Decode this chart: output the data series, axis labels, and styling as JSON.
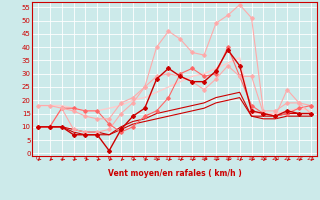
{
  "x": [
    0,
    1,
    2,
    3,
    4,
    5,
    6,
    7,
    8,
    9,
    10,
    11,
    12,
    13,
    14,
    15,
    16,
    17,
    18,
    19,
    20,
    21,
    22,
    23
  ],
  "series": [
    {
      "y": [
        10,
        10,
        10,
        7,
        7,
        7,
        1,
        9,
        14,
        17,
        28,
        32,
        29,
        27,
        27,
        31,
        39,
        33,
        16,
        15,
        14,
        16,
        15,
        15
      ],
      "color": "#cc0000",
      "lw": 1.0,
      "marker": "D",
      "ms": 2.0,
      "zorder": 5
    },
    {
      "y": [
        10,
        10,
        17,
        9,
        8,
        8,
        9,
        15,
        19,
        25,
        40,
        46,
        43,
        38,
        37,
        49,
        52,
        56,
        51,
        16,
        16,
        19,
        19,
        18
      ],
      "color": "#ffaaaa",
      "lw": 0.8,
      "marker": "D",
      "ms": 1.8,
      "zorder": 4
    },
    {
      "y": [
        10,
        10,
        17,
        17,
        16,
        16,
        11,
        8,
        10,
        14,
        16,
        21,
        30,
        32,
        29,
        30,
        40,
        29,
        18,
        15,
        14,
        15,
        17,
        18
      ],
      "color": "#ff6666",
      "lw": 0.8,
      "marker": "D",
      "ms": 1.8,
      "zorder": 4
    },
    {
      "y": [
        10,
        10,
        10,
        9,
        8,
        8,
        7,
        10,
        12,
        13,
        15,
        16,
        17,
        18,
        19,
        21,
        22,
        23,
        14,
        14,
        14,
        15,
        15,
        15
      ],
      "color": "#cc0000",
      "lw": 0.8,
      "marker": null,
      "ms": 0,
      "zorder": 3
    },
    {
      "y": [
        10,
        10,
        10,
        8,
        7,
        7,
        7,
        9,
        11,
        12,
        13,
        14,
        15,
        16,
        17,
        19,
        20,
        21,
        14,
        13,
        13,
        14,
        14,
        14
      ],
      "color": "#cc0000",
      "lw": 0.8,
      "marker": null,
      "ms": 0,
      "zorder": 3
    },
    {
      "y": [
        18,
        18,
        18,
        17,
        16,
        16,
        17,
        18,
        20,
        21,
        23,
        25,
        27,
        29,
        30,
        32,
        34,
        36,
        15,
        15,
        15,
        16,
        17,
        16
      ],
      "color": "#ffcccc",
      "lw": 1.0,
      "marker": null,
      "ms": 0,
      "zorder": 2
    },
    {
      "y": [
        18,
        18,
        17,
        16,
        14,
        13,
        13,
        19,
        21,
        25,
        29,
        30,
        29,
        27,
        24,
        28,
        33,
        29,
        29,
        15,
        14,
        24,
        19,
        15
      ],
      "color": "#ffaaaa",
      "lw": 0.8,
      "marker": "D",
      "ms": 1.8,
      "zorder": 4
    }
  ],
  "yticks": [
    0,
    5,
    10,
    15,
    20,
    25,
    30,
    35,
    40,
    45,
    50,
    55
  ],
  "xticks": [
    0,
    1,
    2,
    3,
    4,
    5,
    6,
    7,
    8,
    9,
    10,
    11,
    12,
    13,
    14,
    15,
    16,
    17,
    18,
    19,
    20,
    21,
    22,
    23
  ],
  "xlabel": "Vent moyen/en rafales ( km/h )",
  "xlim": [
    -0.5,
    23.5
  ],
  "ylim": [
    -1,
    57
  ],
  "bg_color": "#cceaea",
  "grid_color": "#ffffff",
  "axis_color": "#cc0000",
  "label_color": "#cc0000"
}
